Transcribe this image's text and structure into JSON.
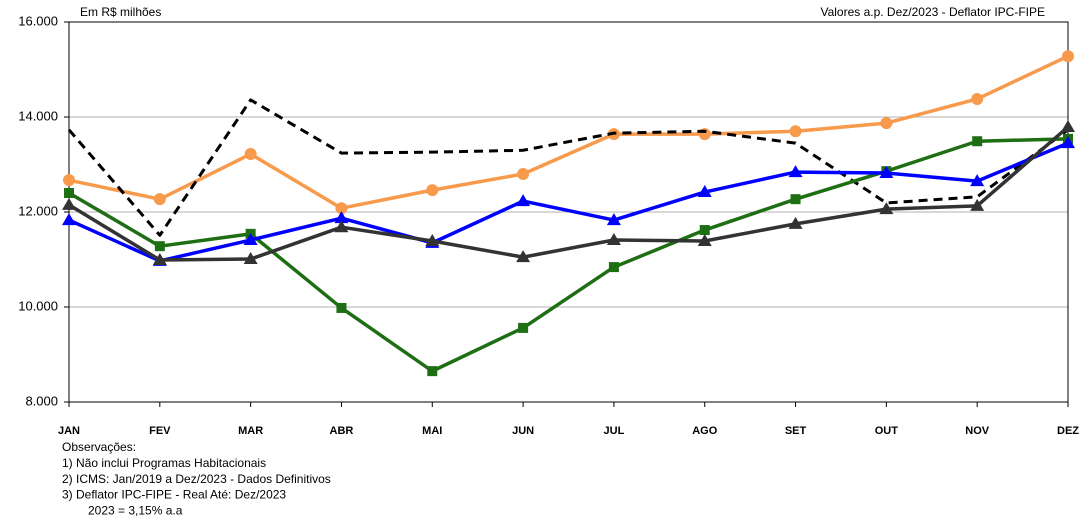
{
  "chart_data": {
    "type": "line",
    "subtitle_left": "Em R$ milhões",
    "subtitle_right": "Valores a.p. Dez/2023 - Deflator IPC-FIPE",
    "categories": [
      "JAN",
      "FEV",
      "MAR",
      "ABR",
      "MAI",
      "JUN",
      "JUL",
      "AGO",
      "SET",
      "OUT",
      "NOV",
      "DEZ"
    ],
    "series": [
      {
        "color": "#f79a4c",
        "marker": "circle",
        "dashed": false,
        "values": [
          12670,
          12270,
          13220,
          12080,
          12460,
          12800,
          13640,
          13640,
          13700,
          13870,
          14380,
          15280
        ]
      },
      {
        "color": "#000000",
        "marker": "none",
        "dashed": true,
        "values": [
          13730,
          11510,
          14360,
          13240,
          13260,
          13300,
          13660,
          13700,
          13450,
          12190,
          12320,
          13730
        ]
      },
      {
        "color": "#1e6e14",
        "marker": "square",
        "dashed": false,
        "values": [
          12400,
          11280,
          11540,
          9980,
          8650,
          9560,
          10840,
          11620,
          12270,
          12860,
          13490,
          13540
        ]
      },
      {
        "color": "#0000ff",
        "marker": "triangle",
        "dashed": false,
        "values": [
          11830,
          10970,
          11410,
          11870,
          11350,
          12230,
          11830,
          12420,
          12840,
          12820,
          12650,
          13450
        ]
      },
      {
        "color": "#333333",
        "marker": "triangle",
        "dashed": false,
        "values": [
          12150,
          10990,
          11010,
          11680,
          11390,
          11050,
          11410,
          11390,
          11750,
          12060,
          12130,
          13790
        ]
      }
    ],
    "ylim": [
      8000,
      16000
    ],
    "yticks": [
      {
        "value": 8000,
        "label": "8.000"
      },
      {
        "value": 10000,
        "label": "10.000"
      },
      {
        "value": 12000,
        "label": "12.000"
      },
      {
        "value": 14000,
        "label": "14.000"
      },
      {
        "value": 16000,
        "label": "16.000"
      }
    ],
    "grid": true,
    "notes": [
      "Observações:",
      "1)  Não inclui Programas Habitacionais",
      "2)  ICMS: Jan/2019 a Dez/2023 - Dados Definitivos",
      "3)  Deflator IPC-FIPE - Real Até: Dez/2023",
      "2023 = 3,15% a.a"
    ]
  }
}
